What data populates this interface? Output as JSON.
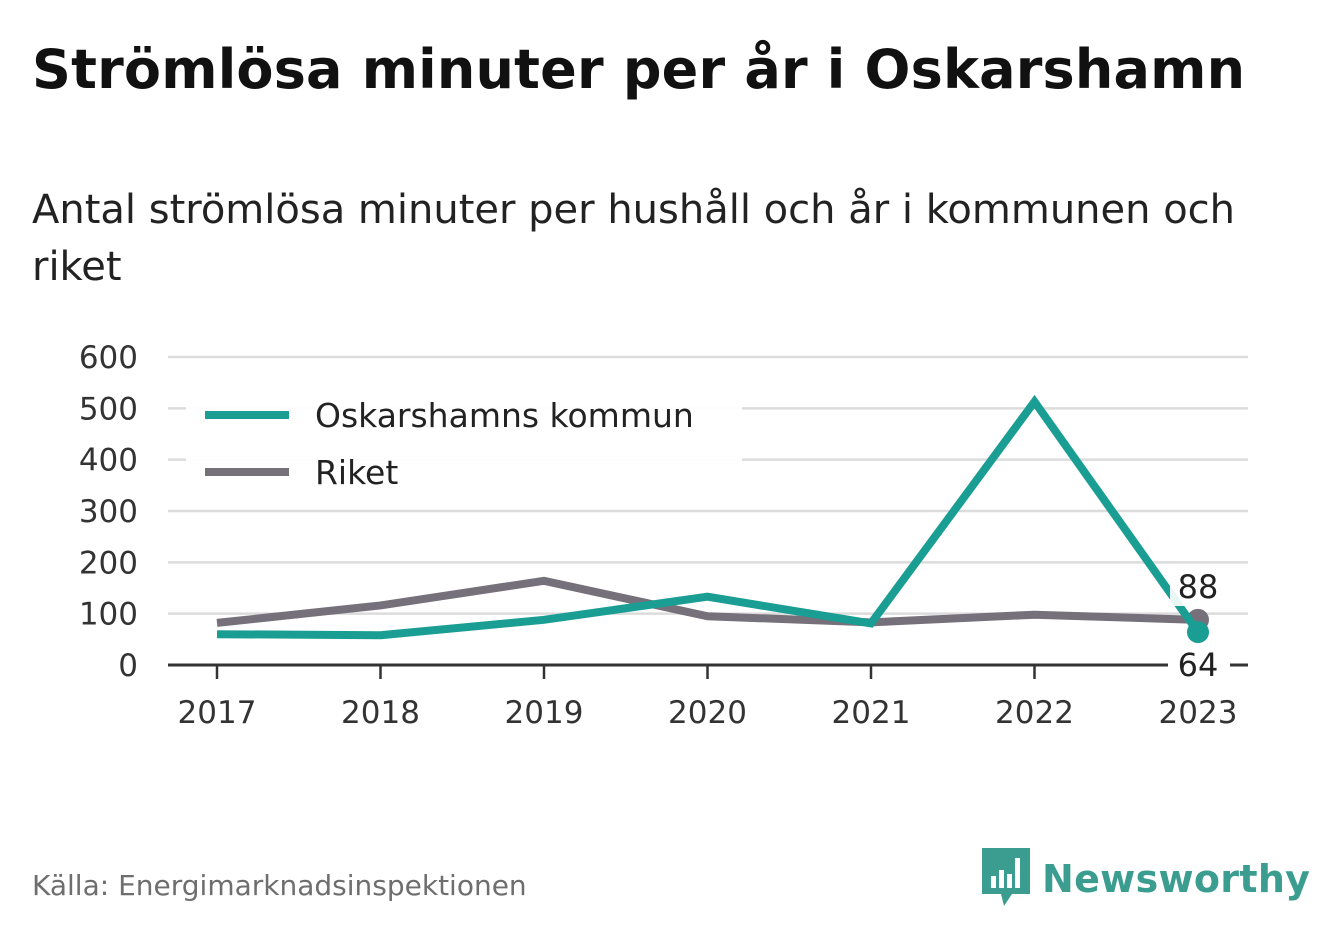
{
  "title": "Strömlösa minuter per år i Oskarshamn",
  "subtitle": "Antal strömlösa minuter per hushåll och år i kommunen och riket",
  "source": "Källa: Energimarknadsinspektionen",
  "brand": {
    "name": "Newsworthy",
    "icon": "newsworthy-logo-icon",
    "color": "#3a9d8f"
  },
  "chart_data": {
    "type": "line",
    "x": [
      "2017",
      "2018",
      "2019",
      "2020",
      "2021",
      "2022",
      "2023"
    ],
    "series": [
      {
        "name": "Oskarshamns kommun",
        "color": "#1a9e93",
        "values": [
          60,
          58,
          88,
          133,
          81,
          513,
          64
        ]
      },
      {
        "name": "Riket",
        "color": "#757079",
        "values": [
          82,
          116,
          164,
          95,
          83,
          98,
          88
        ]
      }
    ],
    "ylim": [
      0,
      600
    ],
    "yticks": [
      0,
      100,
      200,
      300,
      400,
      500,
      600
    ],
    "end_labels": [
      "64",
      "88"
    ],
    "grid": true,
    "legend": "top-left"
  }
}
